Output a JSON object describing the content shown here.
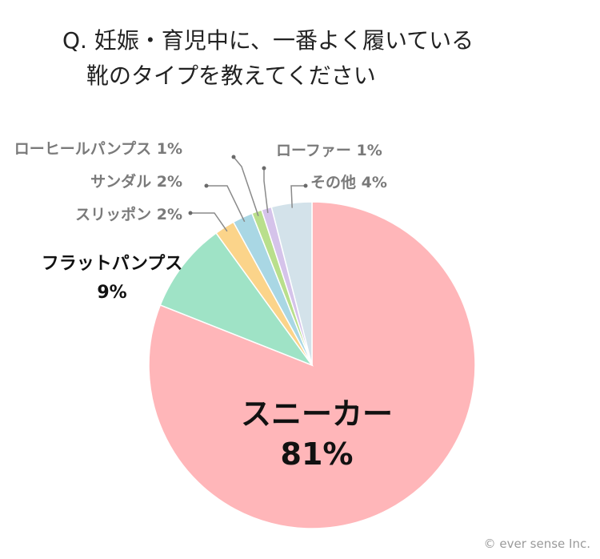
{
  "title": {
    "line1": "Q. 妊娠・育児中に、一番よく履いている",
    "line2": "靴のタイプを教えてください"
  },
  "copyright": "© ever sense Inc.",
  "chart_data": {
    "type": "pie",
    "title": "Q. 妊娠・育児中に、一番よく履いている 靴のタイプを教えてください",
    "unit": "%",
    "slices": [
      {
        "name": "スニーカー",
        "value": 81,
        "label": "81%",
        "color": "#ffb6b9"
      },
      {
        "name": "フラットパンプス",
        "value": 9,
        "label": "9%",
        "color": "#9fe3c6"
      },
      {
        "name": "スリッポン",
        "value": 2,
        "label": "2%",
        "color": "#fbd48a"
      },
      {
        "name": "サンダル",
        "value": 2,
        "label": "2%",
        "color": "#a9d7e4"
      },
      {
        "name": "ローヒールパンプス",
        "value": 1,
        "label": "1%",
        "color": "#b9df8c"
      },
      {
        "name": "ローファー",
        "value": 1,
        "label": "1%",
        "color": "#d5c3ea"
      },
      {
        "name": "その他",
        "value": 4,
        "label": "4%",
        "color": "#d3e2ea"
      }
    ]
  }
}
